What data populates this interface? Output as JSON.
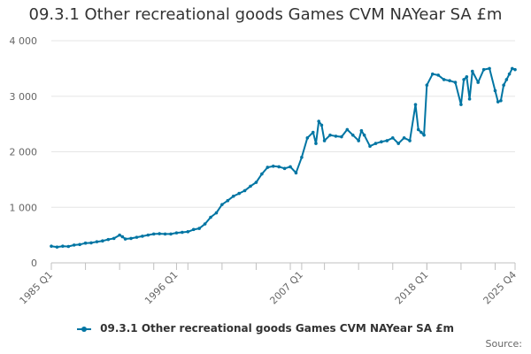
{
  "chart_data": {
    "type": "line",
    "title": "09.3.1 Other recreational goods Games CVM NAYear SA £m",
    "xlabel": "",
    "ylabel": "",
    "x_start": "1985 Q1",
    "x_end": "2025 Q4",
    "ylim": [
      0,
      4000
    ],
    "y_ticks": [
      0,
      1000,
      2000,
      3000,
      4000
    ],
    "y_tick_labels": [
      "0",
      "1 000",
      "2 000",
      "3 000",
      "4 000"
    ],
    "x_tick_labels": [
      "1985 Q1",
      "1996 Q1",
      "2007 Q1",
      "2018 Q1",
      "2025 Q4"
    ],
    "x_tick_positions": [
      "1985 Q1",
      "1996 Q1",
      "2007 Q1",
      "2018 Q1",
      "2025 Q4"
    ],
    "grid": "horizontal",
    "legend_position": "bottom",
    "series": [
      {
        "name": "09.3.1 Other recreational goods Games CVM NAYear SA £m",
        "color": "#0075a3",
        "points": [
          [
            "1985 Q1",
            300
          ],
          [
            "1985 Q3",
            285
          ],
          [
            "1986 Q1",
            300
          ],
          [
            "1986 Q3",
            295
          ],
          [
            "1987 Q1",
            320
          ],
          [
            "1987 Q3",
            330
          ],
          [
            "1988 Q1",
            355
          ],
          [
            "1988 Q3",
            360
          ],
          [
            "1989 Q1",
            380
          ],
          [
            "1989 Q3",
            395
          ],
          [
            "1990 Q1",
            420
          ],
          [
            "1990 Q3",
            440
          ],
          [
            "1991 Q1",
            500
          ],
          [
            "1991 Q2",
            470
          ],
          [
            "1991 Q3",
            430
          ],
          [
            "1992 Q1",
            440
          ],
          [
            "1992 Q3",
            460
          ],
          [
            "1993 Q1",
            480
          ],
          [
            "1993 Q3",
            500
          ],
          [
            "1994 Q1",
            520
          ],
          [
            "1994 Q3",
            525
          ],
          [
            "1995 Q1",
            520
          ],
          [
            "1995 Q3",
            520
          ],
          [
            "1996 Q1",
            540
          ],
          [
            "1996 Q3",
            550
          ],
          [
            "1997 Q1",
            560
          ],
          [
            "1997 Q3",
            600
          ],
          [
            "1998 Q1",
            620
          ],
          [
            "1998 Q3",
            700
          ],
          [
            "1999 Q1",
            820
          ],
          [
            "1999 Q3",
            900
          ],
          [
            "2000 Q1",
            1050
          ],
          [
            "2000 Q3",
            1120
          ],
          [
            "2001 Q1",
            1200
          ],
          [
            "2001 Q3",
            1250
          ],
          [
            "2002 Q1",
            1300
          ],
          [
            "2002 Q3",
            1380
          ],
          [
            "2003 Q1",
            1450
          ],
          [
            "2003 Q3",
            1600
          ],
          [
            "2004 Q1",
            1720
          ],
          [
            "2004 Q3",
            1740
          ],
          [
            "2005 Q1",
            1730
          ],
          [
            "2005 Q3",
            1700
          ],
          [
            "2006 Q1",
            1730
          ],
          [
            "2006 Q3",
            1620
          ],
          [
            "2007 Q1",
            1900
          ],
          [
            "2007 Q3",
            2250
          ],
          [
            "2008 Q1",
            2350
          ],
          [
            "2008 Q2",
            2150
          ],
          [
            "2008 Q3",
            2550
          ],
          [
            "2008 Q4",
            2480
          ],
          [
            "2009 Q1",
            2200
          ],
          [
            "2009 Q3",
            2300
          ],
          [
            "2010 Q1",
            2280
          ],
          [
            "2010 Q3",
            2270
          ],
          [
            "2011 Q1",
            2400
          ],
          [
            "2011 Q3",
            2300
          ],
          [
            "2012 Q1",
            2200
          ],
          [
            "2012 Q2",
            2380
          ],
          [
            "2012 Q3",
            2300
          ],
          [
            "2013 Q1",
            2100
          ],
          [
            "2013 Q3",
            2150
          ],
          [
            "2014 Q1",
            2180
          ],
          [
            "2014 Q3",
            2200
          ],
          [
            "2015 Q1",
            2250
          ],
          [
            "2015 Q3",
            2150
          ],
          [
            "2016 Q1",
            2250
          ],
          [
            "2016 Q3",
            2200
          ],
          [
            "2017 Q1",
            2850
          ],
          [
            "2017 Q2",
            2400
          ],
          [
            "2017 Q3",
            2350
          ],
          [
            "2017 Q4",
            2300
          ],
          [
            "2018 Q1",
            3200
          ],
          [
            "2018 Q3",
            3400
          ],
          [
            "2019 Q1",
            3380
          ],
          [
            "2019 Q3",
            3300
          ],
          [
            "2020 Q1",
            3280
          ],
          [
            "2020 Q3",
            3250
          ],
          [
            "2021 Q1",
            2850
          ],
          [
            "2021 Q2",
            3300
          ],
          [
            "2021 Q3",
            3350
          ],
          [
            "2021 Q4",
            2950
          ],
          [
            "2022 Q1",
            3450
          ],
          [
            "2022 Q3",
            3250
          ],
          [
            "2023 Q1",
            3480
          ],
          [
            "2023 Q3",
            3500
          ],
          [
            "2024 Q1",
            3100
          ],
          [
            "2024 Q2",
            2900
          ],
          [
            "2024 Q3",
            2920
          ],
          [
            "2024 Q4",
            3200
          ],
          [
            "2025 Q1",
            3300
          ],
          [
            "2025 Q2",
            3400
          ],
          [
            "2025 Q3",
            3500
          ],
          [
            "2025 Q4",
            3480
          ]
        ]
      }
    ],
    "source_label": "Source:"
  }
}
